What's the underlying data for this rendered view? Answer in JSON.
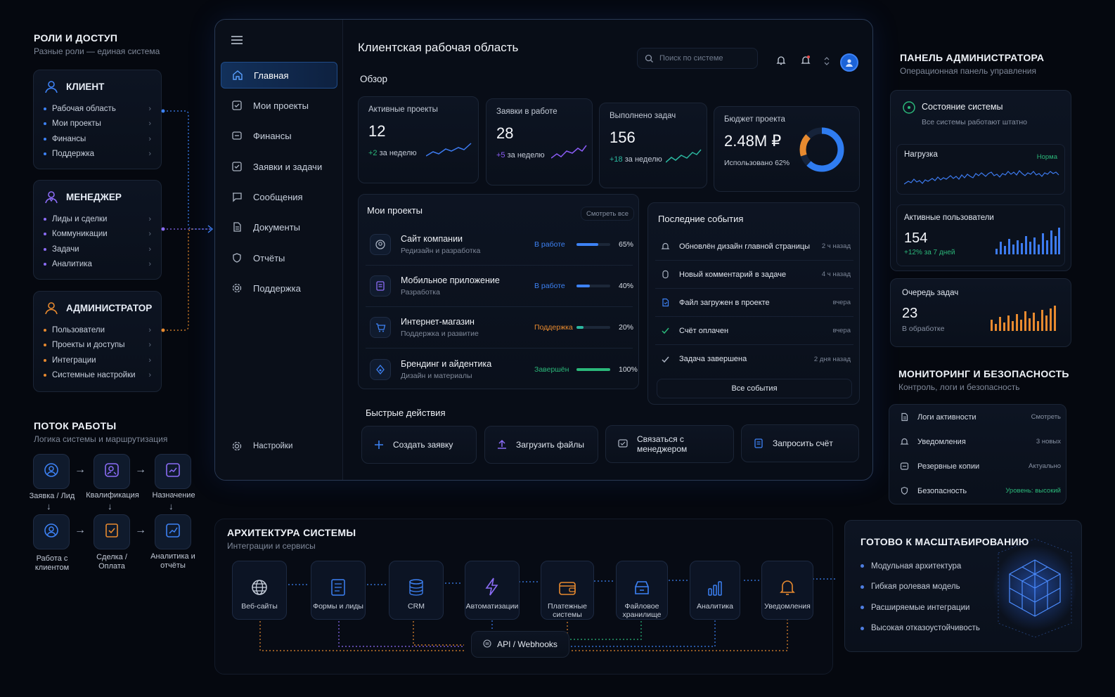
{
  "roles": {
    "title": "РОЛИ И ДОСТУП",
    "subtitle": "Разные роли — единая система",
    "client": {
      "title": "КЛИЕНТ",
      "items": [
        "Рабочая область",
        "Мои проекты",
        "Финансы",
        "Поддержка"
      ]
    },
    "manager": {
      "title": "МЕНЕДЖЕР",
      "items": [
        "Лиды и сделки",
        "Коммуникации",
        "Задачи",
        "Аналитика"
      ]
    },
    "admin": {
      "title": "АДМИНИСТРАТОР",
      "items": [
        "Пользователи",
        "Проекты и доступы",
        "Интеграции",
        "Системные настройки"
      ]
    }
  },
  "flow": {
    "title": "ПОТОК РАБОТЫ",
    "subtitle": "Логика системы и маршрутизация",
    "steps": [
      "Заявка / Лид",
      "Квалификация",
      "Назначение",
      "Работа с клиентом",
      "Сделка / Оплата",
      "Аналитика и отчёты"
    ]
  },
  "sidebar": {
    "items": [
      "Главная",
      "Мои проекты",
      "Финансы",
      "Заявки и задачи",
      "Сообщения",
      "Документы",
      "Отчёты",
      "Поддержка"
    ],
    "settings": "Настройки"
  },
  "header": {
    "title": "Клиентская рабочая область",
    "search_placeholder": "Поиск по системе"
  },
  "overview": {
    "title": "Обзор",
    "kpis": [
      {
        "label": "Активные проекты",
        "value": "12",
        "delta": "+2",
        "delta_suffix": "за неделю",
        "color": "#3d7bf0"
      },
      {
        "label": "Заявки в работе",
        "value": "28",
        "delta": "+5",
        "delta_suffix": "за неделю",
        "color": "#8b5cf6"
      },
      {
        "label": "Выполнено задач",
        "value": "156",
        "delta": "+18",
        "delta_suffix": "за неделю",
        "color": "#2bb8a0"
      }
    ],
    "budget": {
      "label": "Бюджет проекта",
      "value": "2.48M ₽",
      "note": "Использовано 62%",
      "used": 0.62
    }
  },
  "projects": {
    "title": "Мои проекты",
    "view_all": "Смотреть все",
    "rows": [
      {
        "name": "Сайт компании",
        "sub": "Редизайн и разработка",
        "status": "В работе",
        "status_color": "#3d82f5",
        "pct_label": "65%",
        "pct": 0.65,
        "bar_color": "#3d82f5"
      },
      {
        "name": "Мобильное приложение",
        "sub": "Разработка",
        "status": "В работе",
        "status_color": "#3d82f5",
        "pct_label": "40%",
        "pct": 0.4,
        "bar_color": "#3d82f5"
      },
      {
        "name": "Интернет-магазин",
        "sub": "Поддержка и развитие",
        "status": "Поддержка",
        "status_color": "#e88a2f",
        "pct_label": "20%",
        "pct": 0.2,
        "bar_color": "#2bb8a0"
      },
      {
        "name": "Брендинг и айдентика",
        "sub": "Дизайн и материалы",
        "status": "Завершён",
        "status_color": "#2bb87a",
        "pct_label": "100%",
        "pct": 1.0,
        "bar_color": "#2bb87a"
      }
    ]
  },
  "events": {
    "title": "Последние события",
    "rows": [
      {
        "text": "Обновлён дизайн главной страницы",
        "time": "2 ч назад"
      },
      {
        "text": "Новый комментарий в задаче",
        "time": "4 ч назад"
      },
      {
        "text": "Файл загружен в проекте",
        "time": "вчера"
      },
      {
        "text": "Счёт оплачен",
        "time": "вчера"
      },
      {
        "text": "Задача завершена",
        "time": "2 дня назад"
      }
    ],
    "all_button": "Все события"
  },
  "quick_actions": {
    "title": "Быстрые действия",
    "items": [
      "Создать заявку",
      "Загрузить файлы",
      "Связаться с менеджером",
      "Запросить счёт"
    ]
  },
  "admin_panel": {
    "title": "ПАНЕЛЬ АДМИНИСТРАТОРА",
    "subtitle": "Операционная панель управления",
    "status_title": "Состояние системы",
    "status_text": "Все системы работают штатно",
    "load_label": "Нагрузка",
    "load_status": "Норма",
    "users_label": "Активные пользователи",
    "users_value": "154",
    "users_delta": "+12% за 7 дней",
    "queue_label": "Очередь задач",
    "queue_value": "23",
    "queue_note": "В обработке"
  },
  "monitoring": {
    "title": "МОНИТОРИНГ И БЕЗОПАСНОСТЬ",
    "subtitle": "Контроль, логи и безопасность",
    "rows": [
      {
        "label": "Логи активности",
        "value": "Смотреть"
      },
      {
        "label": "Уведомления",
        "value": "3 новых"
      },
      {
        "label": "Резервные копии",
        "value": "Актуально"
      },
      {
        "label": "Безопасность",
        "value": "Уровень: высокий"
      }
    ]
  },
  "architecture": {
    "title": "АРХИТЕКТУРА СИСТЕМЫ",
    "subtitle": "Интеграции и сервисы",
    "nodes": [
      "Веб-сайты",
      "Формы и лиды",
      "CRM",
      "Автоматизации",
      "Платежные системы",
      "Файловое хранилище",
      "Аналитика",
      "Уведомления"
    ],
    "api": "API / Webhooks"
  },
  "scaling": {
    "title": "ГОТОВО К МАСШТАБИРОВАНИЮ",
    "items": [
      "Модульная архитектура",
      "Гибкая ролевая модель",
      "Расширяемые интеграции",
      "Высокая отказоустойчивость"
    ]
  },
  "colors": {
    "accent": "#3d7bf0",
    "purple": "#8b5cf6",
    "orange": "#e88a2f",
    "green": "#2bb87a",
    "teal": "#2bb8a0"
  }
}
